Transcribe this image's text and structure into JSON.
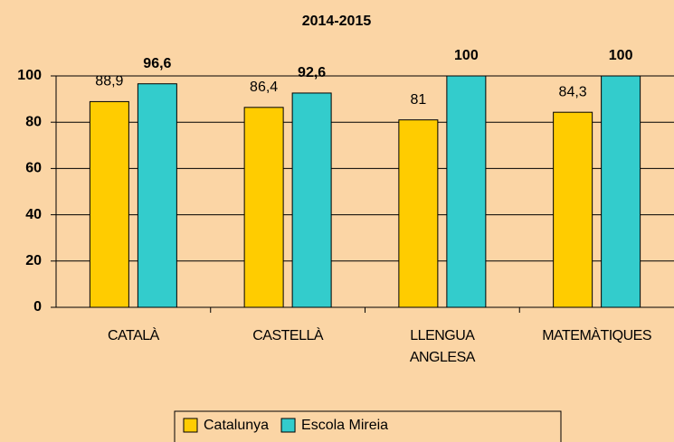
{
  "chart_data": {
    "type": "bar",
    "title": "2014-2015",
    "categories": [
      "CATALÀ",
      "CASTELLÀ",
      "LLENGUA ANGLESA",
      "MATEMÀTIQUES"
    ],
    "series": [
      {
        "name": "Catalunya",
        "color": "#FFCC00",
        "values": [
          88.9,
          86.4,
          81,
          84.3
        ],
        "value_labels": [
          "88,9",
          "86,4",
          "81",
          "84,3"
        ]
      },
      {
        "name": "Escola Mireia",
        "color": "#33CCCC",
        "values": [
          96.6,
          92.6,
          100,
          100
        ],
        "value_labels": [
          "96,6",
          "92,6",
          "100",
          "100"
        ]
      }
    ],
    "ylim": [
      0,
      100
    ],
    "yticks": [
      0,
      20,
      40,
      60,
      80,
      100
    ],
    "grid": true,
    "legend": "bottom"
  }
}
